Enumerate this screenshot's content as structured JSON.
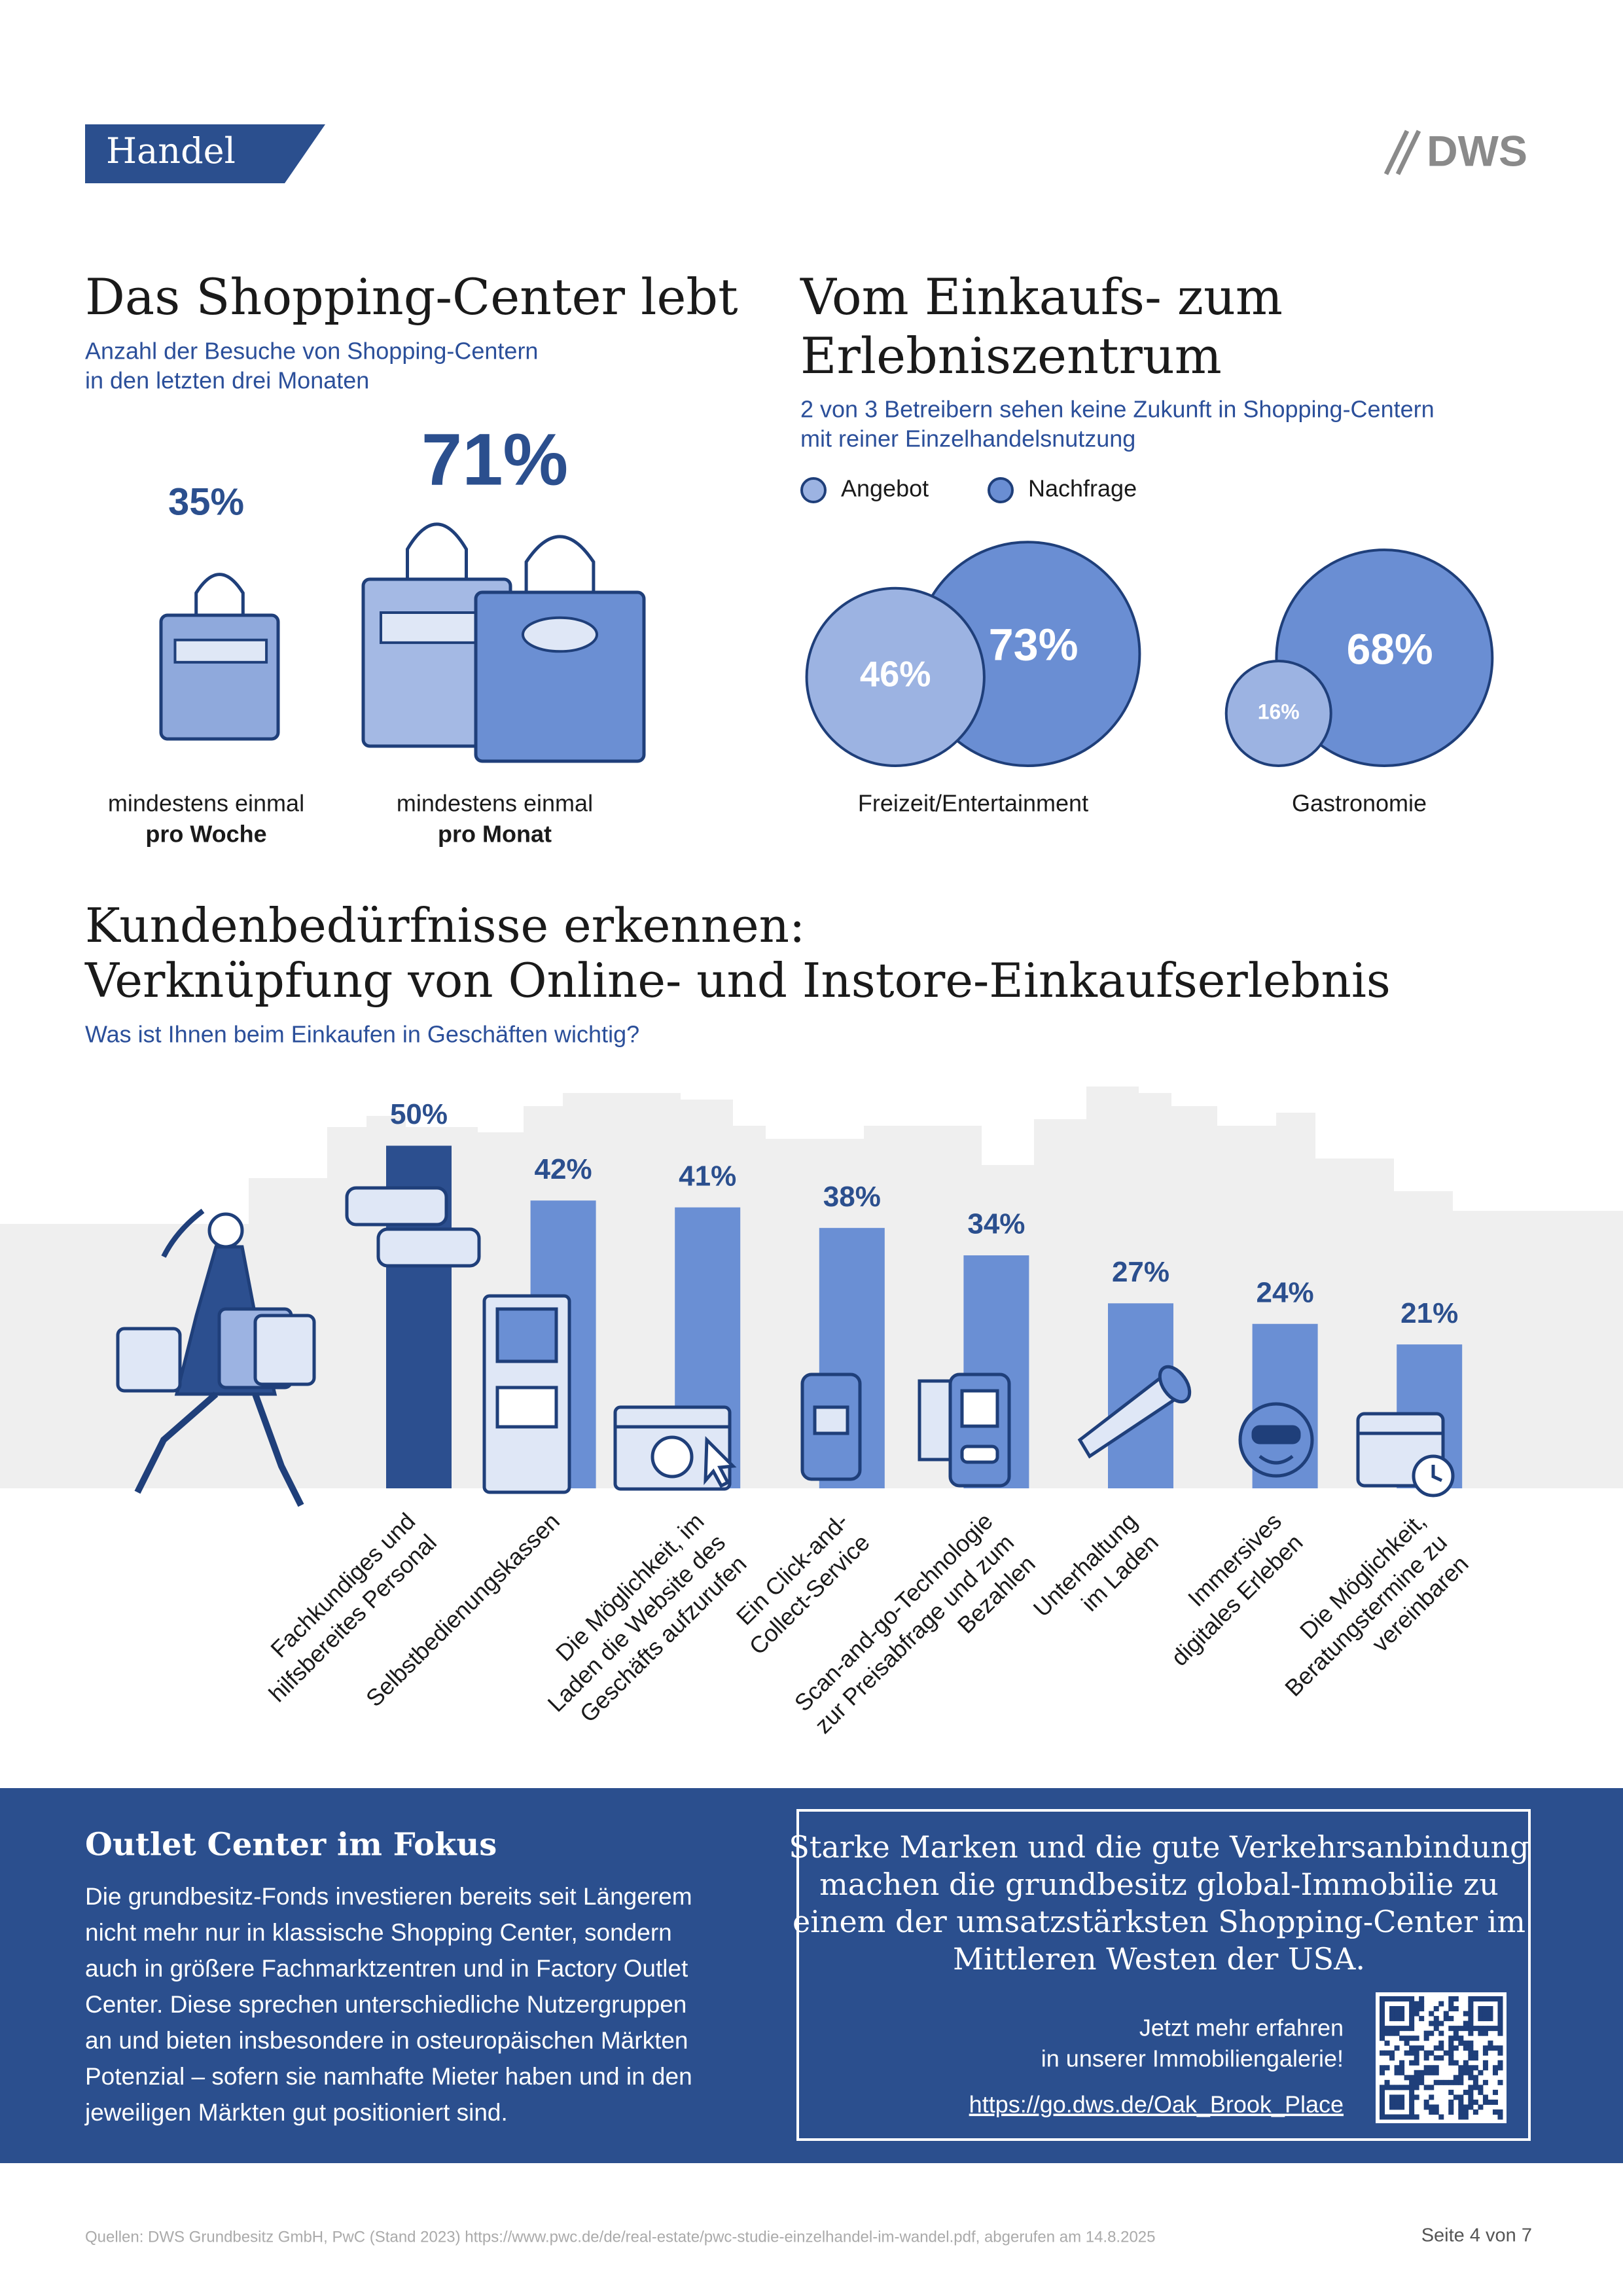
{
  "header": {
    "section": "Handel",
    "logo": "DWS"
  },
  "chart_data": [
    {
      "type": "bags",
      "title": "Das Shopping-Center lebt",
      "subtitle": [
        "Anzahl der Besuche von Shopping-Centern",
        "in den letzten drei Monaten"
      ],
      "categories": [
        [
          "mindestens einmal",
          "pro Woche"
        ],
        [
          "mindestens einmal",
          "pro Monat"
        ]
      ],
      "values": [
        35,
        71
      ],
      "value_labels": [
        "35%",
        "71%"
      ],
      "colors": [
        "#8fa9dc",
        "#6b8fd3"
      ]
    },
    {
      "type": "bubble",
      "title": [
        "Vom Einkaufs- zum",
        "Erlebniszentrum"
      ],
      "subtitle": [
        "2 von 3 Betreibern sehen keine Zukunft in Shopping-Centern",
        "mit reiner Einzelhandelsnutzung"
      ],
      "categories": [
        "Freizeit/Entertainment",
        "Gastronomie"
      ],
      "series": [
        {
          "name": "Angebot",
          "color": "#9cb3e2",
          "values": [
            46,
            16
          ],
          "value_labels": [
            "46%",
            "16%"
          ]
        },
        {
          "name": "Nachfrage",
          "color": "#6a8ed3",
          "values": [
            73,
            68
          ],
          "value_labels": [
            "73%",
            "68%"
          ]
        }
      ]
    },
    {
      "type": "bar",
      "title": [
        "Kundenbedürfnisse erkennen:",
        "Verknüpfung von Online- und Instore-Einkaufserlebnis"
      ],
      "subtitle": "Was ist Ihnen beim Einkaufen in Geschäften wichtig?",
      "categories": [
        [
          "Fachkundiges und",
          "hilfsbereites Personal"
        ],
        [
          "Selbstbedienungskassen"
        ],
        [
          "Die Möglichkeit, im",
          "Laden die Website des",
          "Geschäfts aufzurufen"
        ],
        [
          "Ein Click-and-",
          "Collect-Service"
        ],
        [
          "Scan-and-go-Technologie",
          "zur Preisabfrage und zum",
          "Bezahlen"
        ],
        [
          "Unterhaltung",
          "im Laden"
        ],
        [
          "Immersives",
          "digitales Erleben"
        ],
        [
          "Die Möglichkeit,",
          "Beratungstermine zu",
          "vereinbaren"
        ]
      ],
      "values": [
        50,
        42,
        41,
        38,
        34,
        27,
        24,
        21
      ],
      "value_labels": [
        "50%",
        "42%",
        "41%",
        "38%",
        "34%",
        "27%",
        "24%",
        "21%"
      ],
      "colors": [
        "#2c4f8f",
        "#6a8fd4",
        "#6a8fd4",
        "#6a8fd4",
        "#6a8fd4",
        "#6a8fd4",
        "#6a8fd4",
        "#6a8fd4"
      ]
    }
  ],
  "outlet": {
    "title": "Outlet Center im Fokus",
    "lines": [
      "Die grundbesitz-Fonds investieren bereits seit Längerem",
      "nicht mehr nur in klassische Shopping Center, sondern",
      "auch in größere Fachmarktzentren und in Factory Outlet",
      "Center. Diese sprechen unterschiedliche Nutzergruppen",
      "an und bieten insbesondere in osteuropäischen Märkten",
      "Potenzial – sofern sie namhafte Mieter haben und in den",
      "jeweiligen Märkten gut positioniert sind."
    ]
  },
  "callout": {
    "lines": [
      "Starke Marken und die gute Verkehrsanbindung",
      "machen die grundbesitz global-Immobilie zu",
      "einem der umsatzstärksten Shopping-Center im",
      "Mittleren Westen der USA."
    ],
    "cta": [
      "Jetzt mehr erfahren",
      "in unserer Immobiliengalerie!"
    ],
    "link": "https://go.dws.de/Oak_Brook_Place"
  },
  "footer": {
    "source": "Quellen: DWS Grundbesitz GmbH, PwC (Stand 2023) https://www.pwc.de/de/real-estate/pwc-studie-einzelhandel-im-wandel.pdf, abgerufen am 14.8.2025",
    "page": "Seite 4 von 7"
  }
}
